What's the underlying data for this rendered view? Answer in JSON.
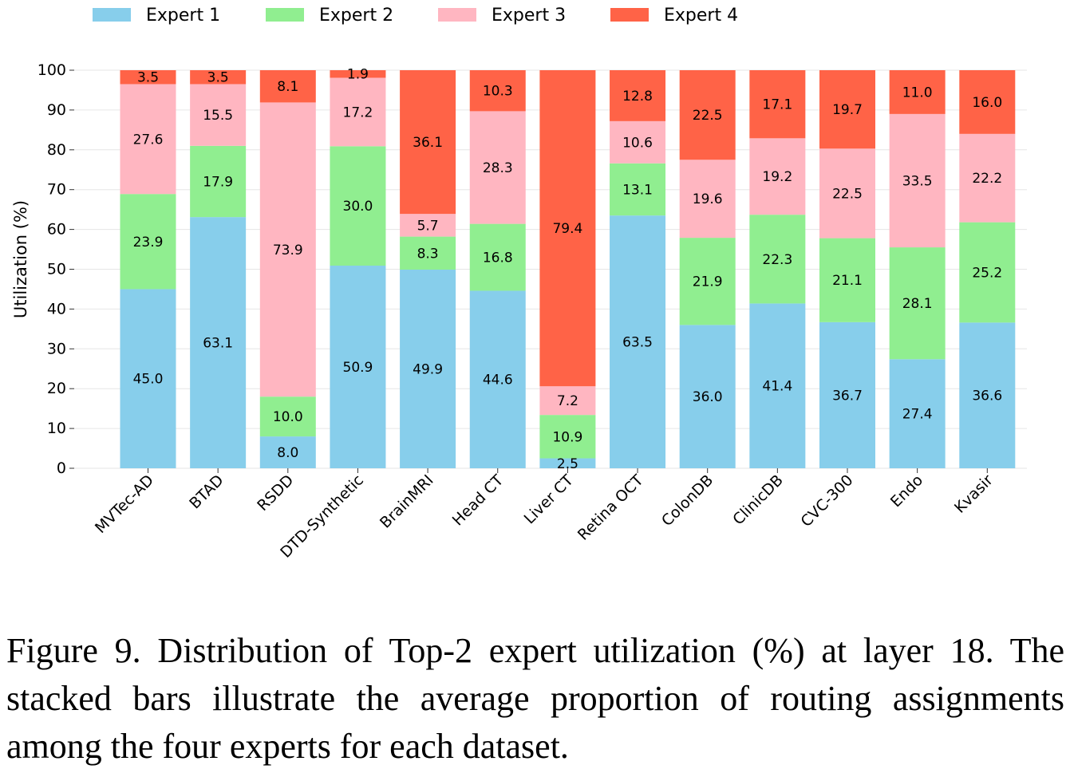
{
  "chart_data": {
    "type": "bar",
    "stacked": true,
    "title": "",
    "xlabel": "",
    "ylabel": "Utilization (%)",
    "ylim": [
      0,
      100
    ],
    "yticks": [
      0,
      10,
      20,
      30,
      40,
      50,
      60,
      70,
      80,
      90,
      100
    ],
    "grid": true,
    "legend_position": "top",
    "categories": [
      "MVTec-AD",
      "BTAD",
      "RSDD",
      "DTD-Synthetic",
      "BrainMRI",
      "Head CT",
      "Liver CT",
      "Retina OCT",
      "ColonDB",
      "ClinicDB",
      "CVC-300",
      "Endo",
      "Kvasir"
    ],
    "series": [
      {
        "name": "Expert 1",
        "color": "#87ceeb",
        "values": [
          45.0,
          63.1,
          8.0,
          50.9,
          49.9,
          44.6,
          2.5,
          63.5,
          36.0,
          41.4,
          36.7,
          27.4,
          36.6
        ]
      },
      {
        "name": "Expert 2",
        "color": "#90ee90",
        "values": [
          23.9,
          17.9,
          10.0,
          30.0,
          8.3,
          16.8,
          10.9,
          13.1,
          21.9,
          22.3,
          21.1,
          28.1,
          25.2
        ]
      },
      {
        "name": "Expert 3",
        "color": "#ffb6c1",
        "values": [
          27.6,
          15.5,
          73.9,
          17.2,
          5.7,
          28.3,
          7.2,
          10.6,
          19.6,
          19.2,
          22.5,
          33.5,
          22.2
        ]
      },
      {
        "name": "Expert 4",
        "color": "#ff6347",
        "values": [
          3.5,
          3.5,
          8.1,
          1.9,
          36.1,
          10.3,
          79.4,
          12.8,
          22.5,
          17.1,
          19.7,
          11.0,
          16.0
        ]
      }
    ]
  },
  "caption": {
    "text": "Figure 9. Distribution of Top-2 expert utilization (%) at layer 18. The stacked bars illustrate the average proportion of routing assignments among the four experts for each dataset."
  }
}
